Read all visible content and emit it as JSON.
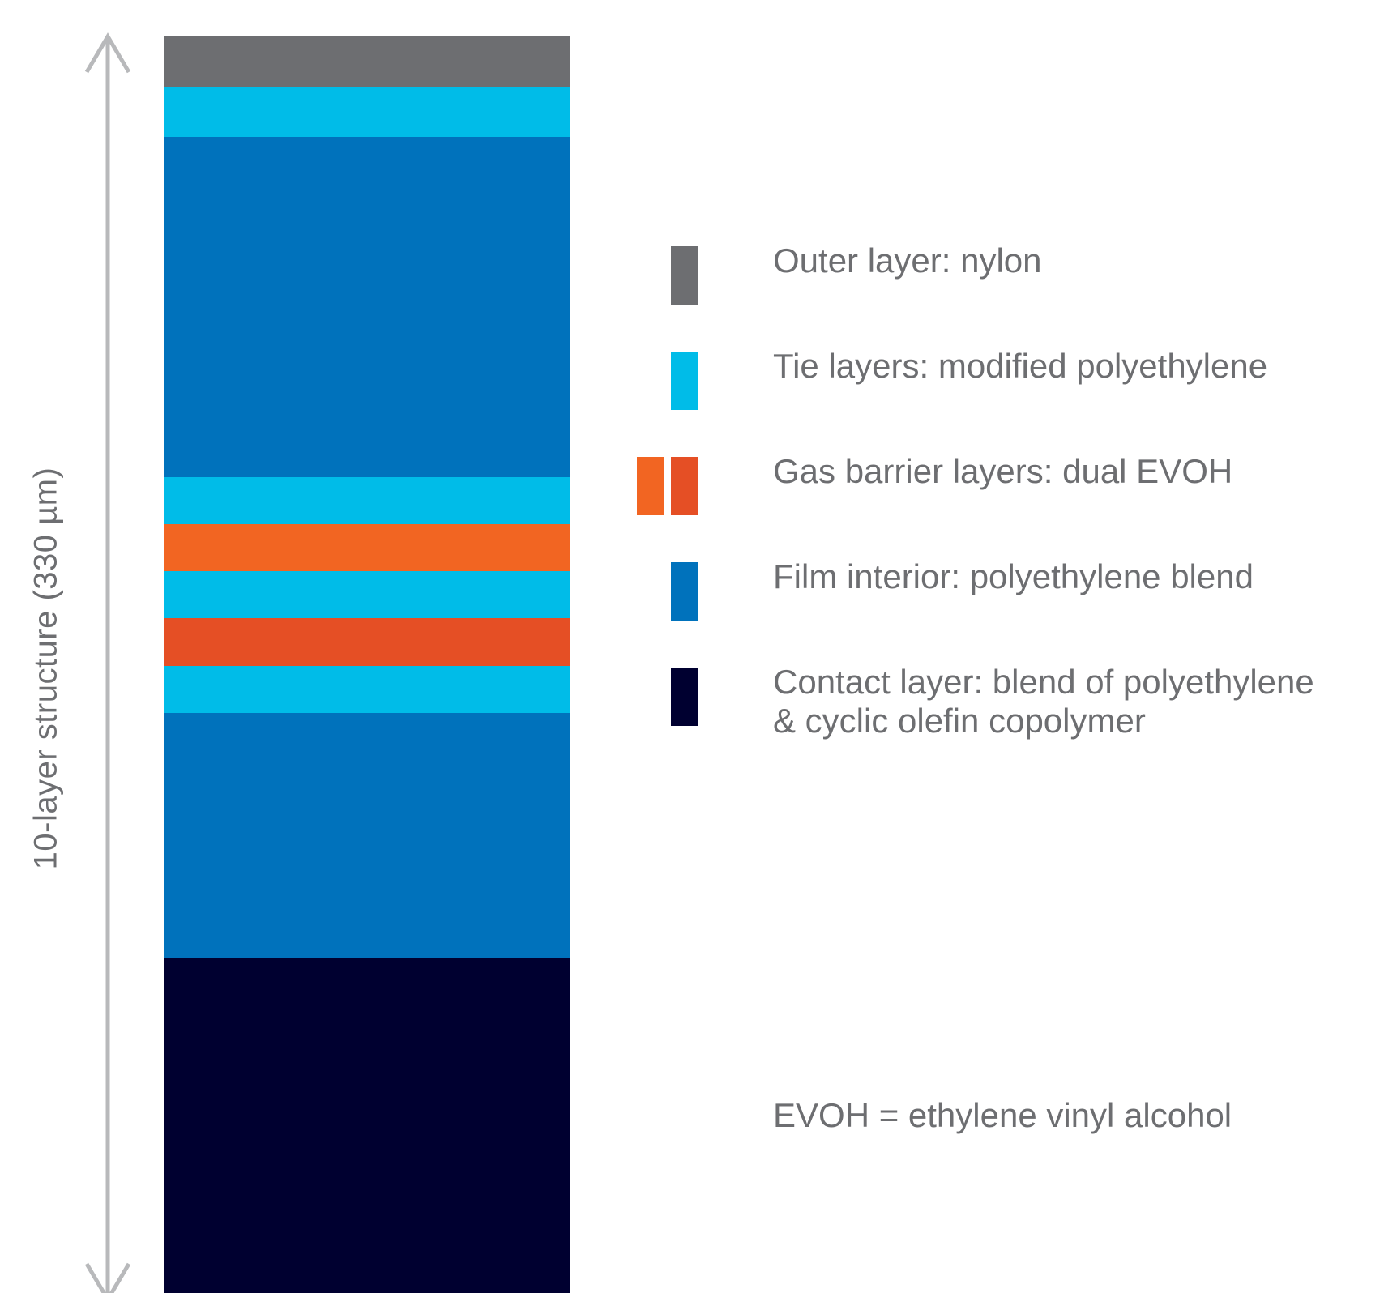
{
  "diagram": {
    "dimension_label": "10-layer structure (330 µm)",
    "colors": {
      "arrow": "#b8b9bb",
      "text": "#6d6e71",
      "nylon": "#6d6e71",
      "tie": "#00bce8",
      "evoh_a": "#f26522",
      "evoh_b": "#e54f25",
      "interior": "#0072bc",
      "contact": "#000030"
    },
    "layers": [
      {
        "name": "outer-layer-nylon",
        "color": "#6d6e71",
        "relative_thickness": 63
      },
      {
        "name": "tie-layer-1",
        "color": "#00bce8",
        "relative_thickness": 62
      },
      {
        "name": "film-interior-1",
        "color": "#0072bc",
        "relative_thickness": 420
      },
      {
        "name": "tie-layer-2",
        "color": "#00bce8",
        "relative_thickness": 58
      },
      {
        "name": "gas-barrier-layer-1",
        "color": "#f26522",
        "relative_thickness": 58
      },
      {
        "name": "tie-layer-3",
        "color": "#00bce8",
        "relative_thickness": 58
      },
      {
        "name": "gas-barrier-layer-2",
        "color": "#e54f25",
        "relative_thickness": 59
      },
      {
        "name": "tie-layer-4",
        "color": "#00bce8",
        "relative_thickness": 58
      },
      {
        "name": "film-interior-2",
        "color": "#0072bc",
        "relative_thickness": 302
      },
      {
        "name": "contact-layer",
        "color": "#000030",
        "relative_thickness": 414
      }
    ],
    "legend": [
      {
        "name": "legend-outer-layer",
        "lines": [
          "Outer layer: nylon"
        ],
        "swatches": [
          "#6d6e71"
        ]
      },
      {
        "name": "legend-tie-layers",
        "lines": [
          "Tie layers: modified polyethylene"
        ],
        "swatches": [
          "#00bce8"
        ]
      },
      {
        "name": "legend-gas-barrier-layers",
        "lines": [
          "Gas barrier layers: dual EVOH"
        ],
        "swatches": [
          "#f26522",
          "#e54f25"
        ]
      },
      {
        "name": "legend-film-interior",
        "lines": [
          "Film interior: polyethylene blend"
        ],
        "swatches": [
          "#0072bc"
        ]
      },
      {
        "name": "legend-contact-layer",
        "lines": [
          "Contact layer: blend of polyethylene",
          "& cyclic olefin copolymer"
        ],
        "swatches": [
          "#000030"
        ]
      }
    ],
    "footnote": "EVOH = ethylene vinyl alcohol"
  }
}
